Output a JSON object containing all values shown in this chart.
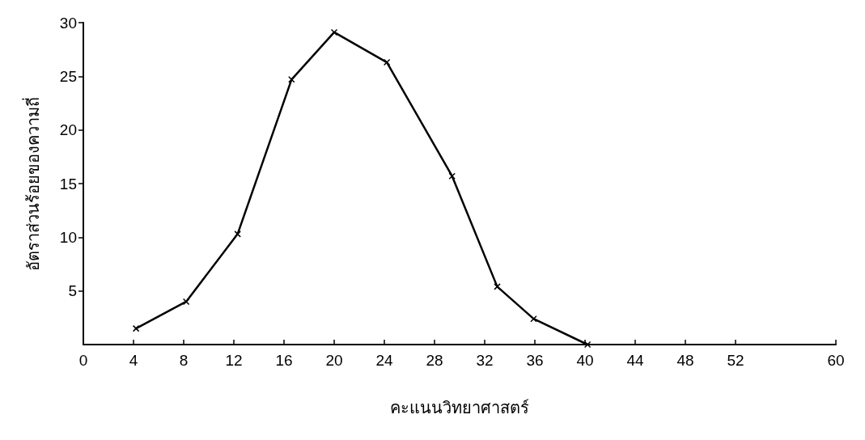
{
  "chart_data": {
    "type": "line",
    "xlabel": "คะแนนวิทยาศาสตร์",
    "ylabel": "อัตราส่วนร้อยของความถี่",
    "x": [
      4.2,
      8.2,
      12.3,
      16.6,
      20,
      24.2,
      29.4,
      33,
      35.9,
      40.2
    ],
    "series": [
      {
        "color": "#000000",
        "values": [
          1.5,
          4,
          10.3,
          24.7,
          29.1,
          26.3,
          15.7,
          5.4,
          2.4,
          0
        ]
      }
    ],
    "xlim": [
      0,
      60
    ],
    "xticks": [
      0,
      4,
      8,
      12,
      16,
      20,
      24,
      28,
      32,
      36,
      40,
      44,
      48,
      52,
      60
    ],
    "ylim": [
      0,
      30
    ],
    "yticks": [
      5,
      10,
      15,
      20,
      25,
      30
    ],
    "grid": false,
    "marker": "cross",
    "line_style": "solid"
  }
}
